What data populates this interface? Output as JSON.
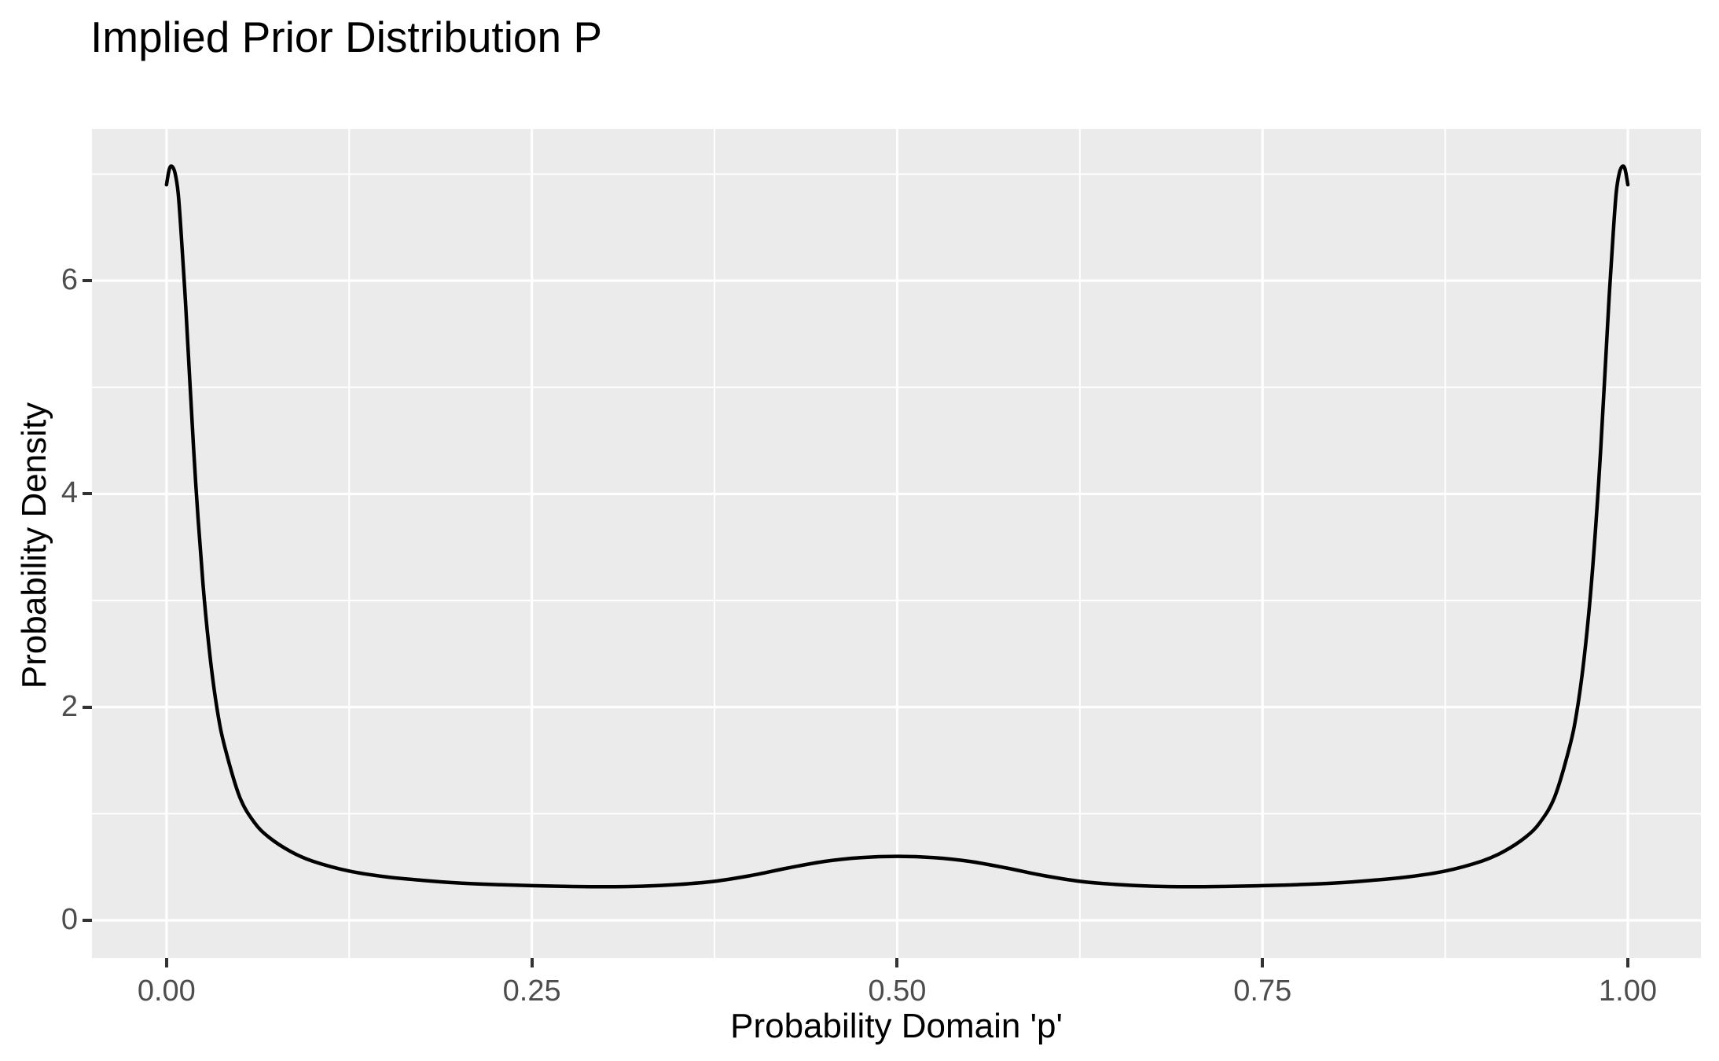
{
  "colors": {
    "background": "#FFFFFF",
    "panel_background": "#EBEBEB",
    "gridline": "#FFFFFF",
    "curve": "#000000",
    "tick_label": "#4D4D4D",
    "tick_mark": "#333333",
    "title_text": "#000000"
  },
  "chart_data": {
    "type": "line",
    "title": "Implied Prior Distribution P",
    "xlabel": "Probability Domain 'p'",
    "ylabel": "Probability Density",
    "xlim": [
      -0.051,
      1.05
    ],
    "ylim": [
      -0.354,
      7.424
    ],
    "grid": "on",
    "legend": "none",
    "x_ticks": {
      "values": [
        0,
        0.25,
        0.5,
        0.75,
        1.0
      ],
      "labels": [
        "0.00",
        "0.25",
        "0.50",
        "0.75",
        "1.00"
      ]
    },
    "y_ticks": {
      "values": [
        0,
        2,
        4,
        6
      ],
      "labels": [
        "0",
        "2",
        "4",
        "6"
      ]
    },
    "x_minor_gridlines": [
      0.125,
      0.375,
      0.625,
      0.875
    ],
    "y_minor_gridlines": [
      1,
      3,
      5,
      7
    ],
    "series": [
      {
        "name": "implied prior density",
        "color": "#000000",
        "points": [
          [
            0.0,
            6.9
          ],
          [
            0.002,
            7.05
          ],
          [
            0.004,
            7.07
          ],
          [
            0.006,
            7.0
          ],
          [
            0.008,
            6.82
          ],
          [
            0.01,
            6.45
          ],
          [
            0.013,
            5.8
          ],
          [
            0.016,
            5.05
          ],
          [
            0.02,
            4.1
          ],
          [
            0.025,
            3.15
          ],
          [
            0.03,
            2.45
          ],
          [
            0.035,
            1.95
          ],
          [
            0.04,
            1.62
          ],
          [
            0.05,
            1.16
          ],
          [
            0.06,
            0.92
          ],
          [
            0.07,
            0.78
          ],
          [
            0.085,
            0.645
          ],
          [
            0.1,
            0.555
          ],
          [
            0.125,
            0.462
          ],
          [
            0.15,
            0.408
          ],
          [
            0.175,
            0.375
          ],
          [
            0.2,
            0.35
          ],
          [
            0.225,
            0.335
          ],
          [
            0.25,
            0.325
          ],
          [
            0.275,
            0.318
          ],
          [
            0.3,
            0.315
          ],
          [
            0.325,
            0.32
          ],
          [
            0.35,
            0.336
          ],
          [
            0.375,
            0.366
          ],
          [
            0.4,
            0.42
          ],
          [
            0.425,
            0.49
          ],
          [
            0.45,
            0.552
          ],
          [
            0.475,
            0.588
          ],
          [
            0.5,
            0.6
          ],
          [
            0.525,
            0.588
          ],
          [
            0.55,
            0.552
          ],
          [
            0.575,
            0.49
          ],
          [
            0.6,
            0.42
          ],
          [
            0.625,
            0.366
          ],
          [
            0.65,
            0.336
          ],
          [
            0.675,
            0.32
          ],
          [
            0.7,
            0.315
          ],
          [
            0.725,
            0.318
          ],
          [
            0.75,
            0.325
          ],
          [
            0.775,
            0.335
          ],
          [
            0.8,
            0.35
          ],
          [
            0.825,
            0.375
          ],
          [
            0.85,
            0.408
          ],
          [
            0.875,
            0.462
          ],
          [
            0.9,
            0.555
          ],
          [
            0.915,
            0.645
          ],
          [
            0.93,
            0.78
          ],
          [
            0.94,
            0.92
          ],
          [
            0.95,
            1.16
          ],
          [
            0.96,
            1.62
          ],
          [
            0.965,
            1.95
          ],
          [
            0.97,
            2.45
          ],
          [
            0.975,
            3.15
          ],
          [
            0.98,
            4.1
          ],
          [
            0.984,
            5.05
          ],
          [
            0.987,
            5.8
          ],
          [
            0.99,
            6.45
          ],
          [
            0.992,
            6.82
          ],
          [
            0.994,
            7.0
          ],
          [
            0.996,
            7.07
          ],
          [
            0.998,
            7.05
          ],
          [
            1.0,
            6.9
          ]
        ]
      }
    ]
  }
}
